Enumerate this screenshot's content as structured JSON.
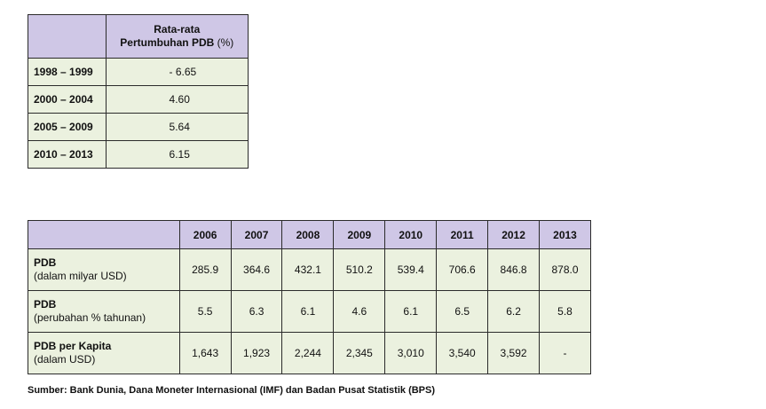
{
  "growth_table": {
    "header": {
      "line1": "Rata-rata",
      "line2_main": "Pertumbuhan PDB ",
      "line2_unit": "(%)"
    },
    "rows": [
      {
        "period": "1998 – 1999",
        "value": "- 6.65"
      },
      {
        "period": "2000 – 2004",
        "value": "4.60"
      },
      {
        "period": "2005 – 2009",
        "value": "5.64"
      },
      {
        "period": "2010 – 2013",
        "value": "6.15"
      }
    ]
  },
  "gdp_table": {
    "years": [
      "2006",
      "2007",
      "2008",
      "2009",
      "2010",
      "2011",
      "2012",
      "2013"
    ],
    "rows": [
      {
        "label": "PDB",
        "sublabel": "(dalam milyar USD)",
        "values": [
          "285.9",
          "364.6",
          "432.1",
          "510.2",
          "539.4",
          "706.6",
          "846.8",
          "878.0"
        ]
      },
      {
        "label": "PDB",
        "sublabel": "(perubahan % tahunan)",
        "values": [
          "5.5",
          "6.3",
          "6.1",
          "4.6",
          "6.1",
          "6.5",
          "6.2",
          "5.8"
        ]
      },
      {
        "label": "PDB per Kapita",
        "sublabel": "(dalam USD)",
        "values": [
          "1,643",
          "1,923",
          "2,244",
          "2,345",
          "3,010",
          "3,540",
          "3,592",
          "-"
        ]
      }
    ]
  },
  "source_note": "Sumber: Bank Dunia, Dana Moneter Internasional (IMF) dan Badan Pusat Statistik (BPS)",
  "colors": {
    "header_bg": "#cfc7e6",
    "cell_bg": "#ebf1df",
    "border": "#2b2b2b"
  }
}
